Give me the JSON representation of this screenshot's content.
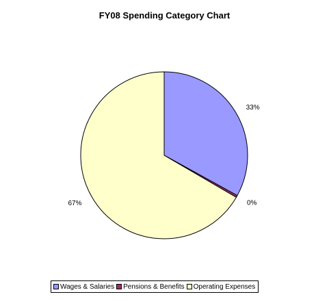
{
  "chart_data": {
    "type": "pie",
    "title": "FY08 Spending Category Chart",
    "legend_position": "bottom",
    "slices": [
      {
        "label": "Wages & Salaries",
        "value": 33,
        "display": "33%",
        "color": "#9999ff"
      },
      {
        "label": "Pensions & Benefits",
        "value": 0.4,
        "display": "0%",
        "color": "#993366"
      },
      {
        "label": "Operating Expenses",
        "value": 66.6,
        "display": "67%",
        "color": "#ffffcc"
      }
    ]
  }
}
